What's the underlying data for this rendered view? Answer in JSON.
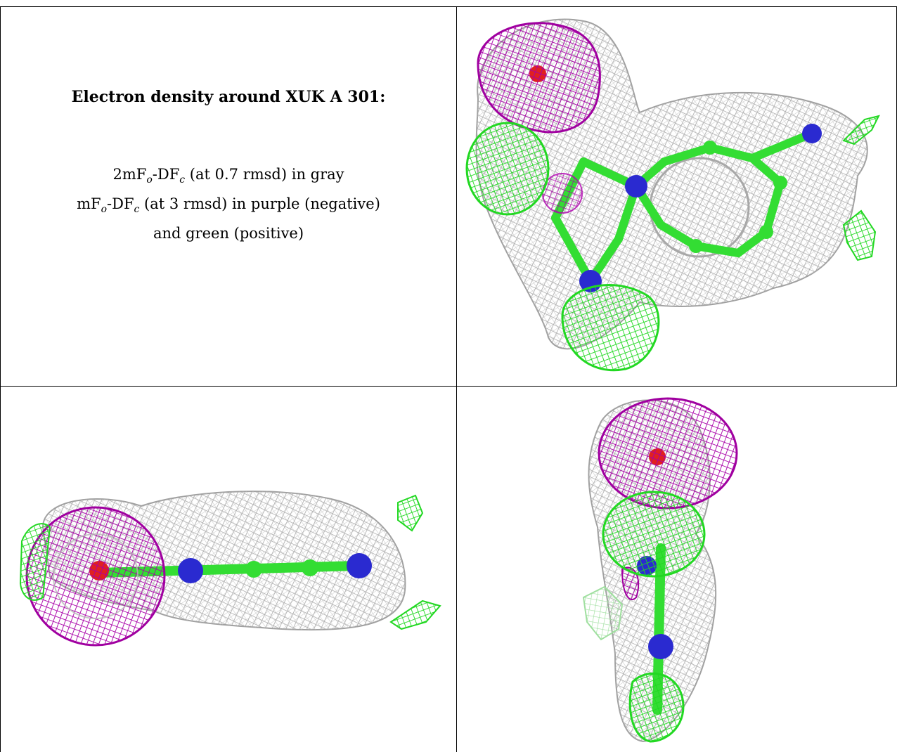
{
  "caption": {
    "title": "Electron density around XUK A 301:",
    "line1_pre": "2mF",
    "line1_sub1": "o",
    "line1_mid": "-DF",
    "line1_sub2": "c",
    "line1_post": " (at 0.7 rmsd) in gray",
    "line2_pre": "mF",
    "line2_sub1": "o",
    "line2_mid": "-DF",
    "line2_sub2": "c",
    "line2_post": " (at 3 rmsd) in purple (negative)",
    "line3": "and green (positive)"
  },
  "colors": {
    "gray_map": "#b4b4b4",
    "negative_map": "#b000b0",
    "positive_map": "#22e022",
    "carbon": "#33dd33",
    "nitrogen": "#2a2ad0",
    "oxygen": "#e02020",
    "border": "#000000"
  },
  "panels": [
    {
      "view": "top-right",
      "icon": "density-map-view-1"
    },
    {
      "view": "bottom-left",
      "icon": "density-map-view-2"
    },
    {
      "view": "bottom-right",
      "icon": "density-map-view-3"
    }
  ]
}
